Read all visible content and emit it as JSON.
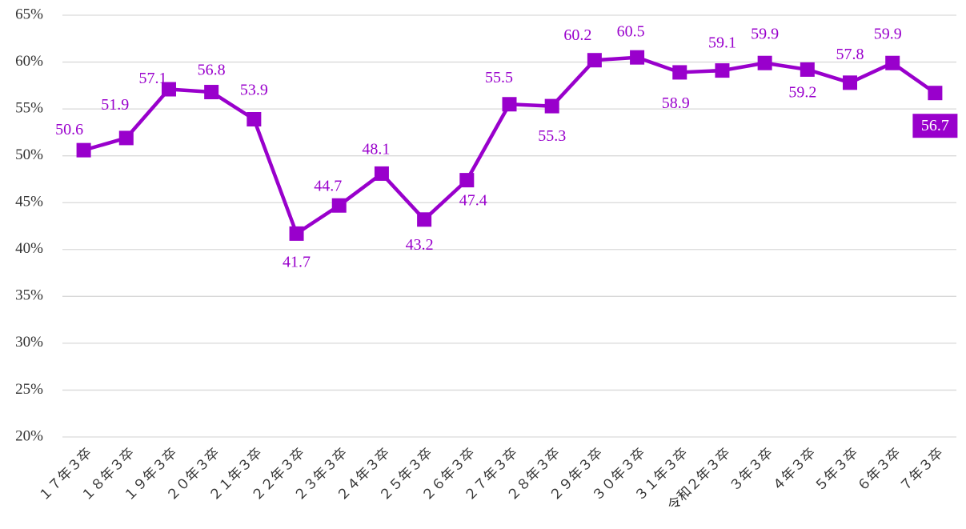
{
  "chart_data": {
    "type": "line",
    "categories": [
      "１７年３卒",
      "１８年３卒",
      "１９年３卒",
      "２０年３卒",
      "２１年３卒",
      "２２年３卒",
      "２３年３卒",
      "２４年３卒",
      "２５年３卒",
      "２６年３卒",
      "２７年３卒",
      "２８年３卒",
      "２９年３卒",
      "３０年３卒",
      "３１年３卒",
      "令和２年３卒",
      "３年３卒",
      "４年３卒",
      "５年３卒",
      "６年３卒",
      "７年３卒"
    ],
    "series": [
      {
        "color": "#9900cc",
        "values": [
          50.6,
          51.9,
          57.1,
          56.8,
          53.9,
          41.7,
          44.7,
          48.1,
          43.2,
          47.4,
          55.5,
          55.3,
          60.2,
          60.5,
          58.9,
          59.1,
          59.9,
          59.2,
          57.8,
          59.9,
          56.7
        ]
      }
    ],
    "ylim": [
      20,
      65
    ],
    "yticks": [
      {
        "value": 20,
        "label": "20%"
      },
      {
        "value": 25,
        "label": "25%"
      },
      {
        "value": 30,
        "label": "30%"
      },
      {
        "value": 35,
        "label": "35%"
      },
      {
        "value": 40,
        "label": "40%"
      },
      {
        "value": 45,
        "label": "45%"
      },
      {
        "value": 50,
        "label": "50%"
      },
      {
        "value": 55,
        "label": "55%"
      },
      {
        "value": 60,
        "label": "60%"
      },
      {
        "value": 65,
        "label": "65%"
      }
    ],
    "grid": true
  }
}
